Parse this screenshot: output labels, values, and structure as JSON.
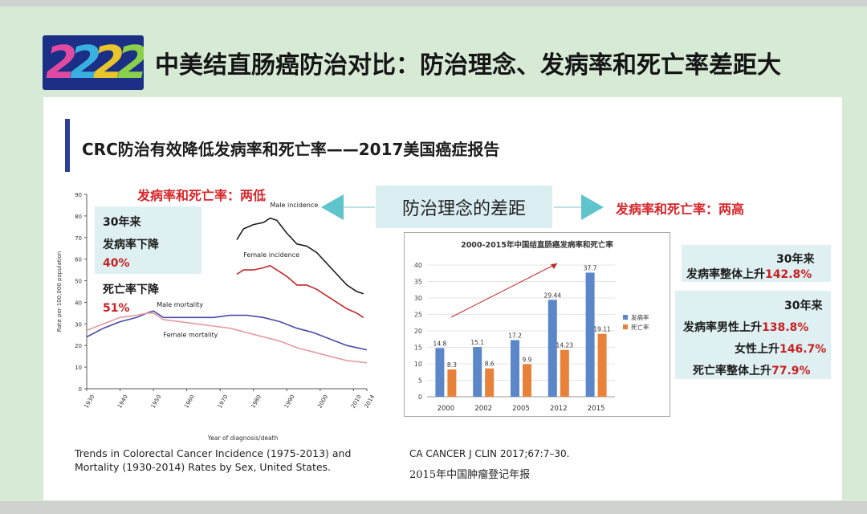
{
  "logo": {
    "text": "2222",
    "colors": [
      "#e04aa0",
      "#3ab0e0",
      "#e8c52a",
      "#8ad04a"
    ]
  },
  "header": {
    "title": "中美结直肠癌防治对比：防治理念、发病率和死亡率差距大"
  },
  "subtitle": "CRC防治有效降低发病率和死亡率——2017美国癌症报告",
  "left_heading": "发病率和死亡率：两低",
  "right_heading": "发病率和死亡率：两高",
  "center_label": "防治理念的差距",
  "us_stats": {
    "period": "30年来",
    "incidence_label": "发病率下降",
    "incidence_value": "40%",
    "mortality_label": "死亡率下降",
    "mortality_value": "51%"
  },
  "cn_stats": {
    "box1_period": "30年来",
    "box1_line": "发病率整体上升",
    "box1_value": "142.8%",
    "box2_period": "30年来",
    "male_label": "发病率男性上升",
    "male_value": "138.8%",
    "female_label": "女性上升",
    "female_value": "146.7%",
    "mortality_label": "死亡率整体上升",
    "mortality_value": "77.9%"
  },
  "captions": {
    "left_line1": "Trends in Colorectal Cancer Incidence (1975-2013) and",
    "left_line2": "Mortality (1930-2014) Rates by Sex, United States.",
    "right_line1": "CA CANCER J CLIN 2017;67:7–30.",
    "right_line2": "2015年中国肿瘤登记年报"
  },
  "chart_data": [
    {
      "type": "line",
      "title": "",
      "xlabel": "Year of diagnosis/death",
      "ylabel": "Rate per 100,000 population",
      "xlim": [
        1930,
        2014
      ],
      "ylim": [
        0,
        90
      ],
      "x_ticks": [
        "1930",
        "1940",
        "1950",
        "1960",
        "1970",
        "1980",
        "1990",
        "2000",
        "2010",
        "2014"
      ],
      "y_ticks": [
        "0",
        "10",
        "20",
        "30",
        "40",
        "50",
        "60",
        "70",
        "80",
        "90"
      ],
      "series": [
        {
          "name": "Male incidence",
          "color": "#1a1a1a",
          "points": [
            [
              1975,
              69
            ],
            [
              1977,
              74
            ],
            [
              1980,
              76
            ],
            [
              1983,
              77
            ],
            [
              1985,
              79
            ],
            [
              1987,
              78
            ],
            [
              1990,
              72
            ],
            [
              1993,
              67
            ],
            [
              1996,
              66
            ],
            [
              1999,
              63
            ],
            [
              2002,
              58
            ],
            [
              2005,
              53
            ],
            [
              2008,
              48
            ],
            [
              2011,
              45
            ],
            [
              2013,
              44
            ]
          ]
        },
        {
          "name": "Female incidence",
          "color": "#c0282a",
          "points": [
            [
              1975,
              53
            ],
            [
              1977,
              55
            ],
            [
              1980,
              55
            ],
            [
              1983,
              56
            ],
            [
              1985,
              57
            ],
            [
              1987,
              55
            ],
            [
              1990,
              52
            ],
            [
              1993,
              48
            ],
            [
              1996,
              48
            ],
            [
              1999,
              46
            ],
            [
              2002,
              43
            ],
            [
              2005,
              40
            ],
            [
              2008,
              37
            ],
            [
              2011,
              35
            ],
            [
              2013,
              33
            ]
          ]
        },
        {
          "name": "Male mortality",
          "color": "#4b4aa8",
          "points": [
            [
              1930,
              24
            ],
            [
              1935,
              28
            ],
            [
              1940,
              31
            ],
            [
              1945,
              33
            ],
            [
              1948,
              35
            ],
            [
              1950,
              36
            ],
            [
              1953,
              33
            ],
            [
              1958,
              33
            ],
            [
              1963,
              33
            ],
            [
              1968,
              33
            ],
            [
              1973,
              34
            ],
            [
              1978,
              34
            ],
            [
              1983,
              33
            ],
            [
              1988,
              31
            ],
            [
              1993,
              28
            ],
            [
              1998,
              26
            ],
            [
              2003,
              23
            ],
            [
              2008,
              20
            ],
            [
              2014,
              18
            ]
          ]
        },
        {
          "name": "Female mortality",
          "color": "#e39aa0",
          "points": [
            [
              1930,
              27
            ],
            [
              1935,
              30
            ],
            [
              1940,
              33
            ],
            [
              1945,
              34
            ],
            [
              1948,
              35
            ],
            [
              1950,
              35
            ],
            [
              1953,
              32
            ],
            [
              1958,
              31
            ],
            [
              1963,
              30
            ],
            [
              1968,
              29
            ],
            [
              1973,
              28
            ],
            [
              1978,
              26
            ],
            [
              1983,
              24
            ],
            [
              1988,
              22
            ],
            [
              1993,
              19
            ],
            [
              1998,
              17
            ],
            [
              2003,
              15
            ],
            [
              2008,
              13
            ],
            [
              2014,
              12
            ]
          ]
        }
      ]
    },
    {
      "type": "bar",
      "title": "2000-2015年中国结直肠癌发病率和死亡率",
      "categories": [
        "2000",
        "2002",
        "2005",
        "2012",
        "2015"
      ],
      "ylim": [
        0,
        40
      ],
      "y_ticks": [
        "0",
        "5",
        "10",
        "15",
        "20",
        "25",
        "30",
        "35",
        "40"
      ],
      "series": [
        {
          "name": "发病率",
          "color": "#5b86c8",
          "values": [
            14.8,
            15.1,
            17.2,
            29.44,
            37.7
          ]
        },
        {
          "name": "死亡率",
          "color": "#e8823a",
          "values": [
            8.3,
            8.6,
            9.9,
            14.23,
            19.11
          ]
        }
      ],
      "value_labels": {
        "发病率": [
          "14.8",
          "15.1",
          "17.2",
          "29.44",
          "37.7"
        ],
        "死亡率": [
          "8.3",
          "8.6",
          "9.9",
          "14.23",
          "19.11"
        ]
      }
    }
  ]
}
